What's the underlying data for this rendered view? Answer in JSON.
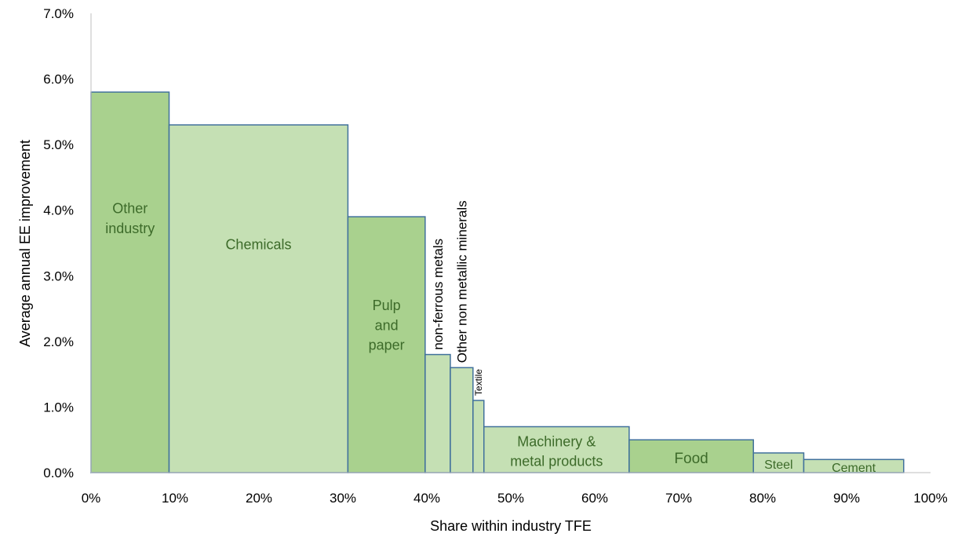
{
  "chart_data": {
    "type": "bar",
    "subtype": "variable-width (marimekko)",
    "xlabel": "Share within industry TFE",
    "ylabel": "Average annual EE improvement",
    "xlim": [
      0,
      100
    ],
    "ylim": [
      0,
      7
    ],
    "x_unit": "%",
    "y_unit": "%",
    "x_ticks": [
      "0%",
      "10%",
      "20%",
      "30%",
      "40%",
      "50%",
      "60%",
      "70%",
      "80%",
      "90%",
      "100%"
    ],
    "y_ticks": [
      "0.0%",
      "1.0%",
      "2.0%",
      "3.0%",
      "4.0%",
      "5.0%",
      "6.0%",
      "7.0%"
    ],
    "grid": false,
    "legend": "none",
    "segments": [
      {
        "label": "Other industry",
        "lines": [
          "Other",
          "industry"
        ],
        "x_start": 0,
        "x_end": 9.3,
        "value": 5.8,
        "color": "#a9d18e",
        "label_orientation": "horizontal"
      },
      {
        "label": "Chemicals",
        "lines": [
          "Chemicals"
        ],
        "x_start": 9.3,
        "x_end": 30.6,
        "value": 5.3,
        "color": "#c5e0b4",
        "label_orientation": "horizontal"
      },
      {
        "label": "Pulp and paper",
        "lines": [
          "Pulp",
          "and",
          "paper"
        ],
        "x_start": 30.6,
        "x_end": 39.8,
        "value": 3.9,
        "color": "#a9d18e",
        "label_orientation": "horizontal"
      },
      {
        "label": "non-ferrous metals",
        "lines": [
          "non-ferrous metals"
        ],
        "x_start": 39.8,
        "x_end": 42.8,
        "value": 1.8,
        "color": "#c5e0b4",
        "label_orientation": "vertical"
      },
      {
        "label": "Other non metallic minerals",
        "lines": [
          "Other non metallic minerals"
        ],
        "x_start": 42.8,
        "x_end": 45.5,
        "value": 1.6,
        "color": "#c5e0b4",
        "label_orientation": "vertical"
      },
      {
        "label": "Textile",
        "lines": [
          "Textile"
        ],
        "x_start": 45.5,
        "x_end": 46.8,
        "value": 1.1,
        "color": "#c5e0b4",
        "label_orientation": "vertical"
      },
      {
        "label": "Machinery & metal products",
        "lines": [
          "Machinery &",
          "metal products"
        ],
        "x_start": 46.8,
        "x_end": 64.1,
        "value": 0.7,
        "color": "#c5e0b4",
        "label_orientation": "horizontal"
      },
      {
        "label": "Food",
        "lines": [
          "Food"
        ],
        "x_start": 64.1,
        "x_end": 78.9,
        "value": 0.5,
        "color": "#a9d18e",
        "label_orientation": "horizontal"
      },
      {
        "label": "Steel",
        "lines": [
          "Steel"
        ],
        "x_start": 78.9,
        "x_end": 84.9,
        "value": 0.3,
        "color": "#c5e0b4",
        "label_orientation": "horizontal"
      },
      {
        "label": "Cement",
        "lines": [
          "Cement"
        ],
        "x_start": 84.9,
        "x_end": 96.8,
        "value": 0.2,
        "color": "#c5e0b4",
        "label_orientation": "horizontal"
      }
    ],
    "colors": {
      "edge": "#41719c",
      "axis": "#bfbfbf",
      "label_text": "#3d6b2a"
    }
  }
}
